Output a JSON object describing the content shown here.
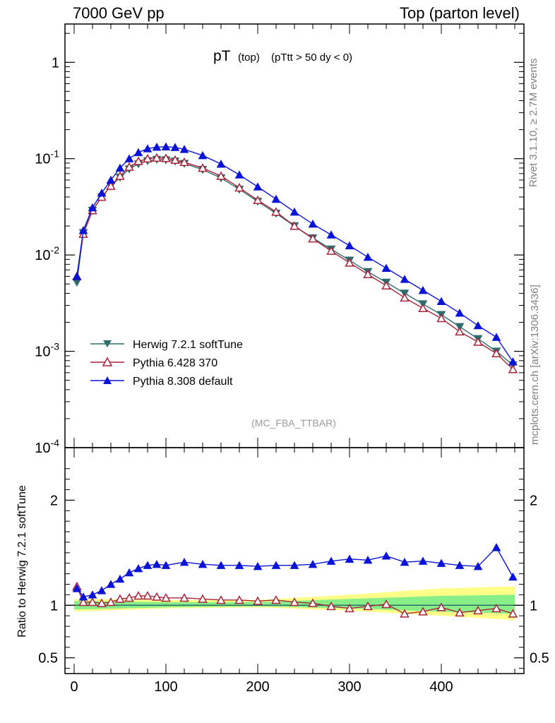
{
  "header": {
    "left": "7000 GeV pp",
    "right": "Top (parton level)"
  },
  "side_labels": {
    "rivet": "Rivet 3.1.10, ≥ 2.7M events",
    "mcplots": "mcplots.cern.ch [arXiv:1306.3436]"
  },
  "chart_data": [
    {
      "type": "line",
      "title_main": "pT",
      "title_sub": "(top)",
      "title_cut": "(pTtt > 50 dy < 0)",
      "watermark": "(MC_FBA_TTBAR)",
      "yscale": "log",
      "xlim": [
        -10,
        490
      ],
      "ylim": [
        0.0001,
        2.5
      ],
      "y_ticks": [
        {
          "value": 1,
          "label": "1"
        },
        {
          "value": 0.1,
          "label": "10^-1"
        },
        {
          "value": 0.01,
          "label": "10^-2"
        },
        {
          "value": 0.001,
          "label": "10^-3"
        },
        {
          "value": 0.0001,
          "label": "10^-4"
        }
      ],
      "legend_position": "bottom-left",
      "series": [
        {
          "name": "Herwig 7.2.1 softTune",
          "color": "#2f6d6d",
          "marker": "triangle-down-filled",
          "x": [
            3,
            10,
            20,
            30,
            40,
            50,
            60,
            70,
            80,
            90,
            100,
            110,
            120,
            140,
            160,
            180,
            200,
            220,
            240,
            260,
            280,
            300,
            320,
            340,
            360,
            380,
            400,
            420,
            440,
            460,
            478
          ],
          "y": [
            0.0052,
            0.017,
            0.029,
            0.04,
            0.052,
            0.064,
            0.078,
            0.088,
            0.095,
            0.098,
            0.097,
            0.094,
            0.089,
            0.077,
            0.063,
            0.048,
            0.036,
            0.027,
            0.02,
            0.015,
            0.0115,
            0.0088,
            0.0067,
            0.0052,
            0.004,
            0.0031,
            0.0024,
            0.0018,
            0.00135,
            0.001,
            0.00072
          ]
        },
        {
          "name": "Pythia 6.428 370",
          "color": "#a8243a",
          "marker": "triangle-up-open",
          "x": [
            3,
            10,
            20,
            30,
            40,
            50,
            60,
            70,
            80,
            90,
            100,
            110,
            120,
            140,
            160,
            180,
            200,
            220,
            240,
            260,
            280,
            300,
            320,
            340,
            360,
            380,
            400,
            420,
            440,
            460,
            478
          ],
          "y": [
            0.006,
            0.0165,
            0.029,
            0.04,
            0.052,
            0.066,
            0.082,
            0.094,
            0.1,
            0.102,
            0.101,
            0.097,
            0.092,
            0.08,
            0.066,
            0.05,
            0.037,
            0.028,
            0.02,
            0.0148,
            0.011,
            0.0083,
            0.0063,
            0.0048,
            0.0036,
            0.0028,
            0.0022,
            0.0016,
            0.00125,
            0.00095,
            0.00065
          ]
        },
        {
          "name": "Pythia 8.308 default",
          "color": "#0a14d6",
          "marker": "triangle-up-filled",
          "x": [
            3,
            10,
            20,
            30,
            40,
            50,
            60,
            70,
            80,
            90,
            100,
            110,
            120,
            140,
            160,
            180,
            200,
            220,
            240,
            260,
            280,
            300,
            320,
            340,
            360,
            380,
            400,
            420,
            440,
            460,
            478
          ],
          "y": [
            0.006,
            0.018,
            0.031,
            0.044,
            0.06,
            0.08,
            0.1,
            0.116,
            0.127,
            0.132,
            0.133,
            0.131,
            0.125,
            0.108,
            0.088,
            0.068,
            0.051,
            0.038,
            0.028,
            0.021,
            0.0162,
            0.0125,
            0.0095,
            0.0073,
            0.0056,
            0.0043,
            0.0033,
            0.0025,
            0.00185,
            0.0014,
            0.00078
          ]
        }
      ]
    },
    {
      "type": "line",
      "ylabel": "Ratio to Herwig 7.2.1 softTune",
      "xlim": [
        -10,
        490
      ],
      "ylim": [
        0.35,
        2.5
      ],
      "x_ticks": [
        0,
        100,
        200,
        300,
        400
      ],
      "y_ticks": [
        {
          "value": 0.5,
          "label": "0.5"
        },
        {
          "value": 1,
          "label": "1"
        },
        {
          "value": 2,
          "label": "2"
        }
      ],
      "bands": [
        {
          "color": "#ffff88",
          "x": [
            0,
            100,
            200,
            300,
            400,
            480
          ],
          "lower": [
            0.94,
            0.97,
            0.98,
            0.95,
            0.9,
            0.86
          ],
          "upper": [
            1.06,
            1.05,
            1.05,
            1.1,
            1.16,
            1.18
          ]
        },
        {
          "color": "#88ee88",
          "x": [
            0,
            100,
            200,
            300,
            400,
            480
          ],
          "lower": [
            0.96,
            0.98,
            0.99,
            0.97,
            0.94,
            0.92
          ],
          "upper": [
            1.04,
            1.03,
            1.03,
            1.06,
            1.09,
            1.1
          ]
        }
      ],
      "series": [
        {
          "name": "Pythia 6.428 370",
          "color": "#a8243a",
          "marker": "triangle-up-open",
          "x": [
            3,
            10,
            20,
            30,
            40,
            50,
            60,
            70,
            80,
            90,
            100,
            120,
            140,
            160,
            180,
            200,
            220,
            240,
            260,
            280,
            300,
            320,
            340,
            360,
            380,
            400,
            420,
            440,
            460,
            478
          ],
          "y": [
            1.18,
            1.03,
            1.03,
            1.02,
            1.03,
            1.06,
            1.07,
            1.09,
            1.09,
            1.08,
            1.07,
            1.07,
            1.06,
            1.05,
            1.05,
            1.04,
            1.05,
            1.03,
            1.02,
            0.99,
            0.97,
            0.99,
            1.01,
            0.92,
            0.94,
            0.98,
            0.93,
            0.95,
            0.97,
            0.92
          ]
        },
        {
          "name": "Pythia 8.308 default",
          "color": "#0a14d6",
          "marker": "triangle-up-filled",
          "x": [
            3,
            10,
            20,
            30,
            40,
            50,
            60,
            70,
            80,
            90,
            100,
            120,
            140,
            160,
            180,
            200,
            220,
            240,
            260,
            280,
            300,
            320,
            340,
            360,
            380,
            400,
            420,
            440,
            460,
            478
          ],
          "y": [
            1.16,
            1.08,
            1.1,
            1.14,
            1.2,
            1.25,
            1.31,
            1.35,
            1.38,
            1.39,
            1.38,
            1.41,
            1.39,
            1.38,
            1.38,
            1.37,
            1.38,
            1.38,
            1.39,
            1.42,
            1.44,
            1.43,
            1.47,
            1.41,
            1.42,
            1.4,
            1.38,
            1.37,
            1.55,
            1.27
          ]
        }
      ]
    }
  ],
  "colors": {
    "herwig": "#2f6d6d",
    "pythia6": "#a8243a",
    "pythia8": "#0a14d6",
    "band_outer": "#ffff88",
    "band_inner": "#88ee88"
  }
}
